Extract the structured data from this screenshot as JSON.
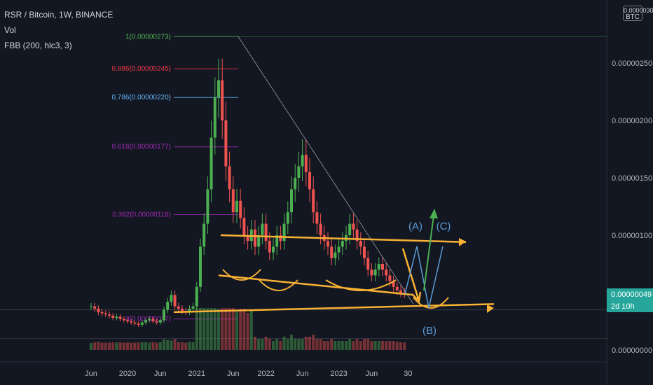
{
  "legend": {
    "symbol": "RSR / Bitcoin, 1W, BINANCE",
    "vol": "Vol",
    "indicator": "FBB (200, hlc3, 3)"
  },
  "currency_badge": {
    "top": "0.00000300",
    "label": "BTC"
  },
  "last_price": {
    "value": "0.00000049",
    "countdown": "2d 10h"
  },
  "colors": {
    "background": "#131722",
    "up": "#26a69a",
    "up_bright": "#4caf50",
    "down": "#ef5350",
    "annotation": "#f9b233",
    "wave_blue": "#5b9bd5",
    "wave_green": "#4caf50",
    "fib_1": "#4caf50",
    "fib_0886": "#f23645",
    "fib_0786": "#64b5f6",
    "fib_0618": "#9c27b0",
    "fib_0382": "#9c27b0"
  },
  "chart_data": {
    "type": "candlestick",
    "title": "RSR / Bitcoin, 1W, BINANCE",
    "y_axis": {
      "ticks": [
        "0.00000250",
        "0.00000200",
        "0.00000150",
        "0.00000100",
        "0.00000000"
      ],
      "tick_values": [
        250,
        200,
        150,
        100,
        0
      ],
      "unit_note": "values in 1e-8 BTC (satoshi)",
      "ylim": [
        0,
        300
      ]
    },
    "x_axis": {
      "ticks": [
        "Jun",
        "2020",
        "Jun",
        "2021",
        "Jun",
        "2022",
        "Jun",
        "2023",
        "Jun",
        "30"
      ],
      "tick_index": [
        0,
        10,
        19,
        29,
        39,
        48,
        58,
        68,
        77,
        87
      ],
      "start_index": 0,
      "weeks_per_index": 2.6
    },
    "fib_levels": [
      {
        "label": "1(0.00000273)",
        "value": 273,
        "color": "#4caf50"
      },
      {
        "label": "0.886(0.00000245)",
        "value": 245,
        "color": "#f23645"
      },
      {
        "label": "0.786(0.00000220)",
        "value": 220,
        "color": "#64b5f6"
      },
      {
        "label": "0.618(0.00000177)",
        "value": 177,
        "color": "#9c27b0"
      },
      {
        "label": "0.382(0.00000118)",
        "value": 118,
        "color": "#9c27b0"
      },
      {
        "label": "0(0.00000027)",
        "value": 27,
        "color": "#9c27b0"
      }
    ],
    "close_series": [
      38,
      36,
      33,
      32,
      31,
      30,
      28,
      29,
      27,
      26,
      25,
      24,
      23,
      22,
      24,
      26,
      27,
      25,
      24,
      26,
      35,
      42,
      48,
      38,
      36,
      34,
      33,
      36,
      38,
      55,
      90,
      110,
      140,
      185,
      220,
      235,
      200,
      160,
      140,
      120,
      130,
      115,
      100,
      95,
      105,
      90,
      100,
      110,
      95,
      85,
      90,
      100,
      95,
      110,
      120,
      140,
      150,
      160,
      170,
      155,
      140,
      120,
      110,
      100,
      95,
      90,
      80,
      85,
      90,
      95,
      100,
      110,
      105,
      95,
      90,
      80,
      70,
      65,
      70,
      75,
      70,
      65,
      60,
      55,
      52,
      50,
      49
    ],
    "wave_labels": [
      "(A)",
      "(B)",
      "(C)"
    ]
  }
}
